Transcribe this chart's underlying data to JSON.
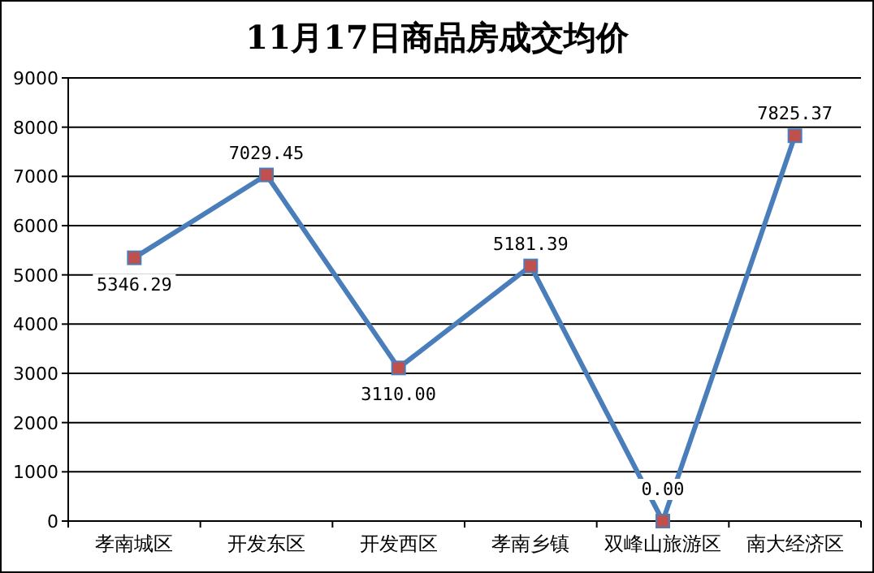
{
  "chart_data": {
    "type": "line",
    "title": "11月17日商品房成交均价",
    "categories": [
      "孝南城区",
      "开发东区",
      "开发西区",
      "孝南乡镇",
      "双峰山旅游区",
      "南大经济区"
    ],
    "series": [
      {
        "color": "#4a7ebb",
        "values": [
          5346.29,
          7029.45,
          3110.0,
          5181.39,
          0.0,
          7825.37
        ],
        "value_labels": [
          "5346.29",
          "7029.45",
          "3110.00",
          "5181.39",
          "0.00",
          "7825.37"
        ]
      }
    ],
    "ylim": [
      0,
      9000
    ],
    "yticks": [
      0,
      1000,
      2000,
      3000,
      4000,
      5000,
      6000,
      7000,
      8000,
      9000
    ],
    "grid": "y",
    "marker": "square",
    "line_style": "solid"
  }
}
